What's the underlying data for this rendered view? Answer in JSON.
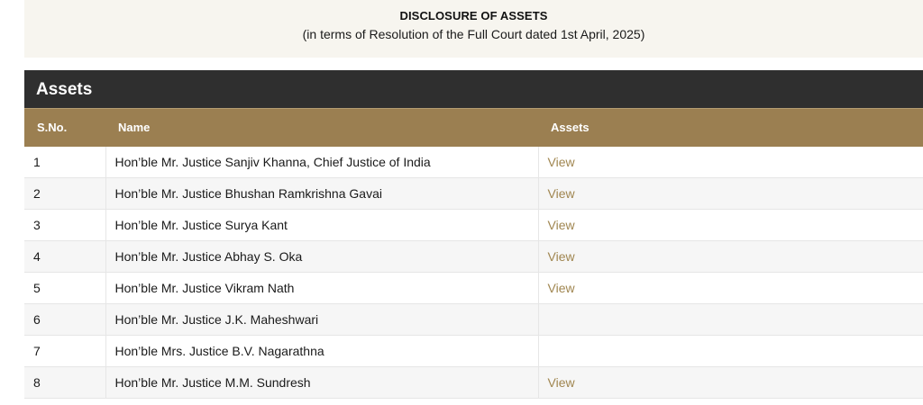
{
  "notice": {
    "title": "DISCLOSURE OF ASSETS",
    "subtitle": "(in terms of Resolution of the Full Court dated 1st April, 2025)"
  },
  "panel": {
    "title": "Assets"
  },
  "table": {
    "headers": [
      "S.No.",
      "Name",
      "Assets"
    ],
    "rows": [
      {
        "sno": "1",
        "name": "Hon’ble Mr. Justice Sanjiv Khanna, Chief Justice of India",
        "assets": "View"
      },
      {
        "sno": "2",
        "name": "Hon’ble Mr. Justice Bhushan Ramkrishna Gavai",
        "assets": "View"
      },
      {
        "sno": "3",
        "name": "Hon’ble Mr. Justice Surya Kant",
        "assets": "View"
      },
      {
        "sno": "4",
        "name": "Hon’ble Mr. Justice Abhay S. Oka",
        "assets": "View"
      },
      {
        "sno": "5",
        "name": "Hon’ble Mr. Justice Vikram Nath",
        "assets": "View"
      },
      {
        "sno": "6",
        "name": "Hon’ble Mr. Justice J.K. Maheshwari",
        "assets": ""
      },
      {
        "sno": "7",
        "name": "Hon’ble Mrs. Justice B.V. Nagarathna",
        "assets": ""
      },
      {
        "sno": "8",
        "name": "Hon’ble Mr. Justice M.M. Sundresh",
        "assets": "View"
      }
    ]
  },
  "colors": {
    "panel_header": "#2f2f2f",
    "table_header": "#9b7f51",
    "link": "#a08650",
    "notice_bg": "#f7f5ef"
  }
}
